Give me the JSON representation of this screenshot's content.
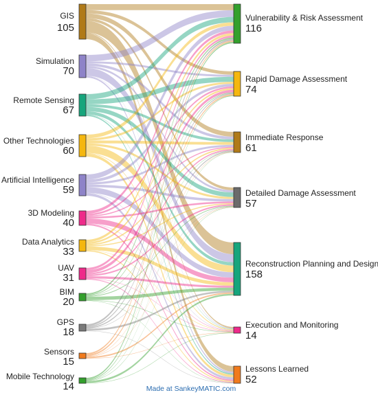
{
  "diagram": {
    "credit": "Made at SankeyMATIC.com",
    "sources": [
      {
        "name": "GIS",
        "value": "105",
        "color": "#b07a18"
      },
      {
        "name": "Simulation",
        "value": "70",
        "color": "#8e83c8"
      },
      {
        "name": "Remote Sensing",
        "value": "67",
        "color": "#16a57c"
      },
      {
        "name": "Other Technologies",
        "value": "60",
        "color": "#f5b70f"
      },
      {
        "name": "Artificial Intelligence",
        "value": "59",
        "color": "#8e83c8"
      },
      {
        "name": "3D Modeling",
        "value": "40",
        "color": "#ee2a8a"
      },
      {
        "name": "Data Analytics",
        "value": "33",
        "color": "#f5b70f"
      },
      {
        "name": "UAV",
        "value": "31",
        "color": "#ee2a8a"
      },
      {
        "name": "BIM",
        "value": "20",
        "color": "#33a02c"
      },
      {
        "name": "GPS",
        "value": "18",
        "color": "#7a7a7a"
      },
      {
        "name": "Sensors",
        "value": "15",
        "color": "#f07a1c"
      },
      {
        "name": "Mobile Technology",
        "value": "14",
        "color": "#33a02c"
      }
    ],
    "targets": [
      {
        "name": "Vulnerability & Risk Assessment",
        "value": "116",
        "color": "#33a02c"
      },
      {
        "name": "Rapid Damage Assessment",
        "value": "74",
        "color": "#f5b70f"
      },
      {
        "name": "Immediate Response",
        "value": "61",
        "color": "#b07a18"
      },
      {
        "name": "Detailed Damage Assessment",
        "value": "57",
        "color": "#6b6b6b"
      },
      {
        "name": "Reconstruction Planning and Design",
        "value": "158",
        "color": "#16a57c"
      },
      {
        "name": "Execution and Monitoring",
        "value": "14",
        "color": "#ee2a8a"
      },
      {
        "name": "Lessons Learned",
        "value": "52",
        "color": "#f07a1c"
      }
    ],
    "flows": [
      {
        "s": 0,
        "t": 0,
        "v": 18
      },
      {
        "s": 0,
        "t": 1,
        "v": 10
      },
      {
        "s": 0,
        "t": 2,
        "v": 14
      },
      {
        "s": 0,
        "t": 3,
        "v": 8
      },
      {
        "s": 0,
        "t": 4,
        "v": 35
      },
      {
        "s": 0,
        "t": 5,
        "v": 3
      },
      {
        "s": 0,
        "t": 6,
        "v": 17
      },
      {
        "s": 1,
        "t": 0,
        "v": 20
      },
      {
        "s": 1,
        "t": 1,
        "v": 6
      },
      {
        "s": 1,
        "t": 2,
        "v": 8
      },
      {
        "s": 1,
        "t": 3,
        "v": 6
      },
      {
        "s": 1,
        "t": 4,
        "v": 24
      },
      {
        "s": 1,
        "t": 5,
        "v": 1
      },
      {
        "s": 1,
        "t": 6,
        "v": 5
      },
      {
        "s": 2,
        "t": 0,
        "v": 16
      },
      {
        "s": 2,
        "t": 1,
        "v": 15
      },
      {
        "s": 2,
        "t": 2,
        "v": 8
      },
      {
        "s": 2,
        "t": 3,
        "v": 13
      },
      {
        "s": 2,
        "t": 4,
        "v": 10
      },
      {
        "s": 2,
        "t": 5,
        "v": 1
      },
      {
        "s": 2,
        "t": 6,
        "v": 4
      },
      {
        "s": 3,
        "t": 0,
        "v": 10
      },
      {
        "s": 3,
        "t": 1,
        "v": 6
      },
      {
        "s": 3,
        "t": 2,
        "v": 8
      },
      {
        "s": 3,
        "t": 3,
        "v": 6
      },
      {
        "s": 3,
        "t": 4,
        "v": 20
      },
      {
        "s": 3,
        "t": 5,
        "v": 2
      },
      {
        "s": 3,
        "t": 6,
        "v": 8
      },
      {
        "s": 4,
        "t": 0,
        "v": 14
      },
      {
        "s": 4,
        "t": 1,
        "v": 8
      },
      {
        "s": 4,
        "t": 2,
        "v": 6
      },
      {
        "s": 4,
        "t": 3,
        "v": 7
      },
      {
        "s": 4,
        "t": 4,
        "v": 16
      },
      {
        "s": 4,
        "t": 5,
        "v": 1
      },
      {
        "s": 4,
        "t": 6,
        "v": 7
      },
      {
        "s": 5,
        "t": 0,
        "v": 8
      },
      {
        "s": 5,
        "t": 1,
        "v": 5
      },
      {
        "s": 5,
        "t": 2,
        "v": 3
      },
      {
        "s": 5,
        "t": 3,
        "v": 5
      },
      {
        "s": 5,
        "t": 4,
        "v": 14
      },
      {
        "s": 5,
        "t": 5,
        "v": 1
      },
      {
        "s": 5,
        "t": 6,
        "v": 4
      },
      {
        "s": 6,
        "t": 0,
        "v": 7
      },
      {
        "s": 6,
        "t": 1,
        "v": 5
      },
      {
        "s": 6,
        "t": 2,
        "v": 4
      },
      {
        "s": 6,
        "t": 3,
        "v": 3
      },
      {
        "s": 6,
        "t": 4,
        "v": 10
      },
      {
        "s": 6,
        "t": 5,
        "v": 1
      },
      {
        "s": 6,
        "t": 6,
        "v": 3
      },
      {
        "s": 7,
        "t": 0,
        "v": 6
      },
      {
        "s": 7,
        "t": 1,
        "v": 8
      },
      {
        "s": 7,
        "t": 2,
        "v": 4
      },
      {
        "s": 7,
        "t": 3,
        "v": 4
      },
      {
        "s": 7,
        "t": 4,
        "v": 6
      },
      {
        "s": 7,
        "t": 5,
        "v": 1
      },
      {
        "s": 7,
        "t": 6,
        "v": 2
      },
      {
        "s": 8,
        "t": 0,
        "v": 4
      },
      {
        "s": 8,
        "t": 1,
        "v": 2
      },
      {
        "s": 8,
        "t": 2,
        "v": 1
      },
      {
        "s": 8,
        "t": 3,
        "v": 2
      },
      {
        "s": 8,
        "t": 4,
        "v": 9
      },
      {
        "s": 8,
        "t": 5,
        "v": 1
      },
      {
        "s": 8,
        "t": 6,
        "v": 1
      },
      {
        "s": 9,
        "t": 0,
        "v": 5
      },
      {
        "s": 9,
        "t": 1,
        "v": 3
      },
      {
        "s": 9,
        "t": 2,
        "v": 3
      },
      {
        "s": 9,
        "t": 3,
        "v": 1
      },
      {
        "s": 9,
        "t": 4,
        "v": 5
      },
      {
        "s": 9,
        "t": 6,
        "v": 1
      },
      {
        "s": 10,
        "t": 0,
        "v": 4
      },
      {
        "s": 10,
        "t": 1,
        "v": 4
      },
      {
        "s": 10,
        "t": 2,
        "v": 1
      },
      {
        "s": 10,
        "t": 3,
        "v": 1
      },
      {
        "s": 10,
        "t": 4,
        "v": 4
      },
      {
        "s": 10,
        "t": 5,
        "v": 1
      },
      {
        "s": 11,
        "t": 0,
        "v": 4
      },
      {
        "s": 11,
        "t": 1,
        "v": 2
      },
      {
        "s": 11,
        "t": 2,
        "v": 1
      },
      {
        "s": 11,
        "t": 3,
        "v": 1
      },
      {
        "s": 11,
        "t": 4,
        "v": 5
      },
      {
        "s": 11,
        "t": 5,
        "v": 1
      }
    ]
  }
}
